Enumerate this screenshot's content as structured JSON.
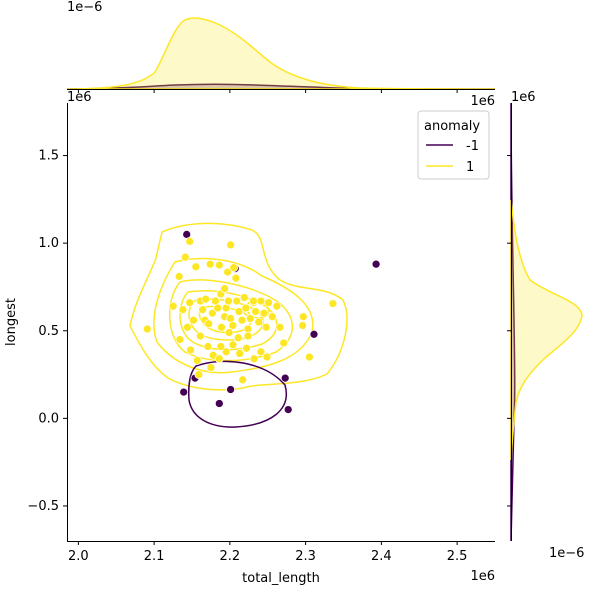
{
  "chart_data": {
    "type": "scatter",
    "subtype": "jointplot-with-kde",
    "xlabel": "total_length",
    "ylabel": "longest",
    "x_offset_label": "1e6",
    "y_offset_label": "1e6",
    "top_marginal_offset_label": "1e−6",
    "right_marginal_offset_label": "1e−6",
    "xlim": [
      1.985,
      2.55
    ],
    "ylim": [
      -0.7,
      1.8
    ],
    "x_ticks": [
      2.0,
      2.1,
      2.2,
      2.3,
      2.4,
      2.5
    ],
    "x_tick_labels": [
      "2.0",
      "2.1",
      "2.2",
      "2.3",
      "2.4",
      "2.5"
    ],
    "y_ticks": [
      -0.5,
      0.0,
      0.5,
      1.0,
      1.5
    ],
    "y_tick_labels": [
      "−0.5",
      "0.0",
      "0.5",
      "1.0",
      "1.5"
    ],
    "grid": false,
    "legend": {
      "title": "anomaly",
      "placement": "top-right",
      "entries": [
        {
          "label": "-1",
          "color": "#440154"
        },
        {
          "label": "1",
          "color": "#fde725"
        }
      ]
    },
    "series": [
      {
        "name": "-1",
        "color": "#440154",
        "points": [
          [
            2.143,
            1.05
          ],
          [
            2.207,
            0.855
          ],
          [
            2.393,
            0.88
          ],
          [
            2.311,
            0.48
          ],
          [
            2.139,
            0.15
          ],
          [
            2.154,
            0.23
          ],
          [
            2.201,
            0.165
          ],
          [
            2.186,
            0.085
          ],
          [
            2.273,
            0.23
          ],
          [
            2.277,
            0.05
          ]
        ]
      },
      {
        "name": "1",
        "color": "#fde725",
        "points": [
          [
            2.201,
            0.99
          ],
          [
            2.147,
            1.01
          ],
          [
            2.133,
            0.81
          ],
          [
            2.141,
            0.92
          ],
          [
            2.155,
            0.865
          ],
          [
            2.186,
            0.875
          ],
          [
            2.174,
            0.88
          ],
          [
            2.197,
            0.835
          ],
          [
            2.205,
            0.86
          ],
          [
            2.091,
            0.51
          ],
          [
            2.125,
            0.64
          ],
          [
            2.134,
            0.45
          ],
          [
            2.138,
            0.62
          ],
          [
            2.147,
            0.66
          ],
          [
            2.152,
            0.56
          ],
          [
            2.144,
            0.52
          ],
          [
            2.148,
            0.39
          ],
          [
            2.161,
            0.47
          ],
          [
            2.161,
            0.67
          ],
          [
            2.167,
            0.56
          ],
          [
            2.168,
            0.68
          ],
          [
            2.164,
            0.62
          ],
          [
            2.172,
            0.54
          ],
          [
            2.177,
            0.6
          ],
          [
            2.181,
            0.67
          ],
          [
            2.184,
            0.63
          ],
          [
            2.188,
            0.71
          ],
          [
            2.189,
            0.52
          ],
          [
            2.193,
            0.58
          ],
          [
            2.195,
            0.63
          ],
          [
            2.198,
            0.67
          ],
          [
            2.201,
            0.57
          ],
          [
            2.204,
            0.53
          ],
          [
            2.209,
            0.67
          ],
          [
            2.212,
            0.61
          ],
          [
            2.216,
            0.56
          ],
          [
            2.219,
            0.69
          ],
          [
            2.221,
            0.63
          ],
          [
            2.224,
            0.51
          ],
          [
            2.227,
            0.57
          ],
          [
            2.231,
            0.66
          ],
          [
            2.234,
            0.61
          ],
          [
            2.238,
            0.55
          ],
          [
            2.241,
            0.67
          ],
          [
            2.245,
            0.6
          ],
          [
            2.248,
            0.52
          ],
          [
            2.251,
            0.66
          ],
          [
            2.256,
            0.58
          ],
          [
            2.262,
            0.64
          ],
          [
            2.266,
            0.52
          ],
          [
            2.271,
            0.43
          ],
          [
            2.157,
            0.33
          ],
          [
            2.171,
            0.41
          ],
          [
            2.178,
            0.36
          ],
          [
            2.186,
            0.34
          ],
          [
            2.195,
            0.38
          ],
          [
            2.204,
            0.42
          ],
          [
            2.213,
            0.37
          ],
          [
            2.222,
            0.4
          ],
          [
            2.232,
            0.34
          ],
          [
            2.241,
            0.38
          ],
          [
            2.249,
            0.35
          ],
          [
            2.188,
            0.41
          ],
          [
            2.175,
            0.29
          ],
          [
            2.159,
            0.25
          ],
          [
            2.217,
            0.22
          ],
          [
            2.305,
            0.35
          ],
          [
            2.296,
            0.53
          ],
          [
            2.297,
            0.58
          ],
          [
            2.336,
            0.655
          ],
          [
            2.231,
            0.67
          ],
          [
            2.211,
            0.46
          ],
          [
            2.199,
            0.49
          ],
          [
            2.224,
            0.47
          ],
          [
            2.193,
            0.74
          ],
          [
            2.208,
            0.8
          ]
        ]
      }
    ]
  }
}
